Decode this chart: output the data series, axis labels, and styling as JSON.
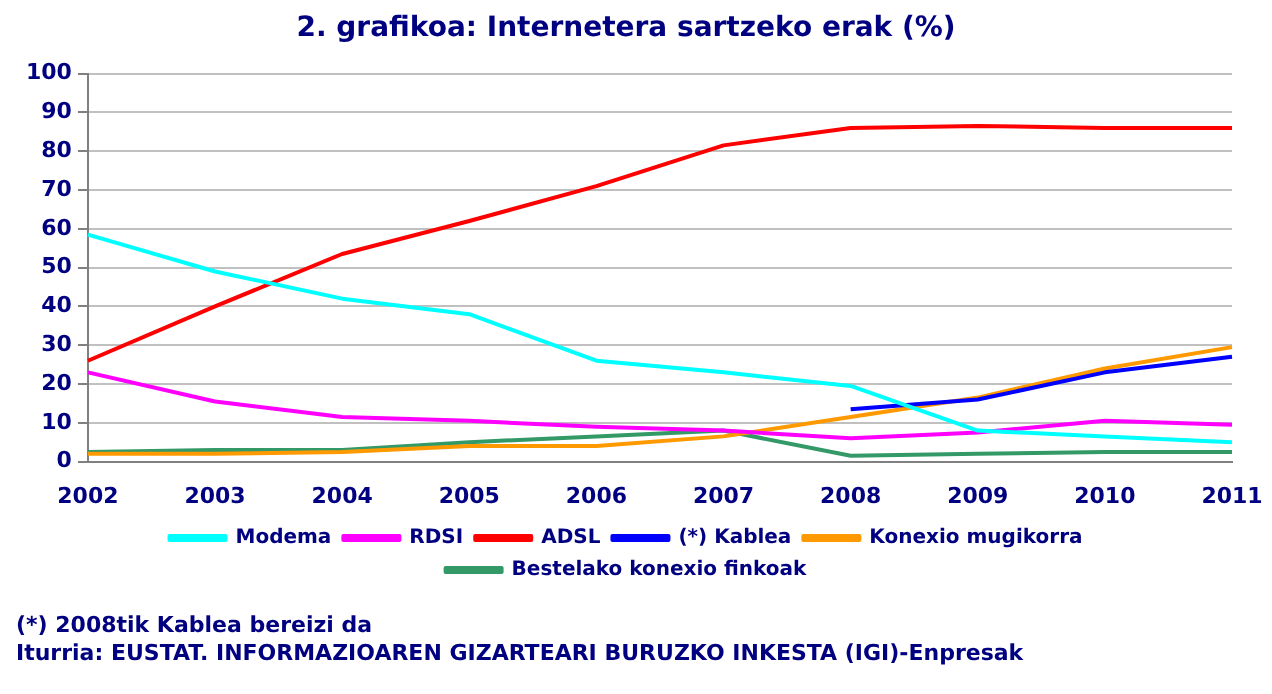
{
  "chart_data": {
    "type": "line",
    "title": "2. grafikoa: Internetera sartzeko erak (%)",
    "categories": [
      "2002",
      "2003",
      "2004",
      "2005",
      "2006",
      "2007",
      "2008",
      "2009",
      "2010",
      "2011"
    ],
    "series": [
      {
        "name": "Modema",
        "color": "#00ffff",
        "values": [
          58.5,
          49,
          42,
          38,
          26,
          23,
          19.5,
          8,
          6.5,
          5
        ]
      },
      {
        "name": "RDSI",
        "color": "#ff00ff",
        "values": [
          23,
          15.5,
          11.5,
          10.5,
          9,
          8,
          6,
          7.5,
          10.5,
          9.5
        ]
      },
      {
        "name": "ADSL",
        "color": "#ff0000",
        "values": [
          26,
          40,
          53.5,
          62,
          71,
          81.5,
          86,
          86.5,
          86,
          86
        ]
      },
      {
        "name": "(*) Kablea",
        "color": "#0000ff",
        "values": [
          null,
          null,
          null,
          null,
          null,
          null,
          13.5,
          16,
          23,
          27
        ]
      },
      {
        "name": "Konexio mugikorra",
        "color": "#ff9900",
        "values": [
          2,
          2,
          2.5,
          4,
          4,
          6.5,
          11.5,
          16.5,
          24,
          29.5
        ]
      },
      {
        "name": "Bestelako konexio finkoak",
        "color": "#339966",
        "values": [
          2.5,
          3,
          3,
          5,
          6.5,
          8,
          1.5,
          2,
          2.5,
          2.5
        ]
      }
    ],
    "ylim": [
      0,
      100
    ],
    "yticks": [
      0,
      10,
      20,
      30,
      40,
      50,
      60,
      70,
      80,
      90,
      100
    ],
    "grid": "y",
    "legend": "bottom",
    "marker": "none",
    "line_style": "solid",
    "annotations": [
      "(*) 2008tik Kablea bereizi da",
      "Iturria: EUSTAT. INFORMAZIOAREN GIZARTEARI BURUZKO INKESTA (IGI)-Enpresak"
    ]
  }
}
